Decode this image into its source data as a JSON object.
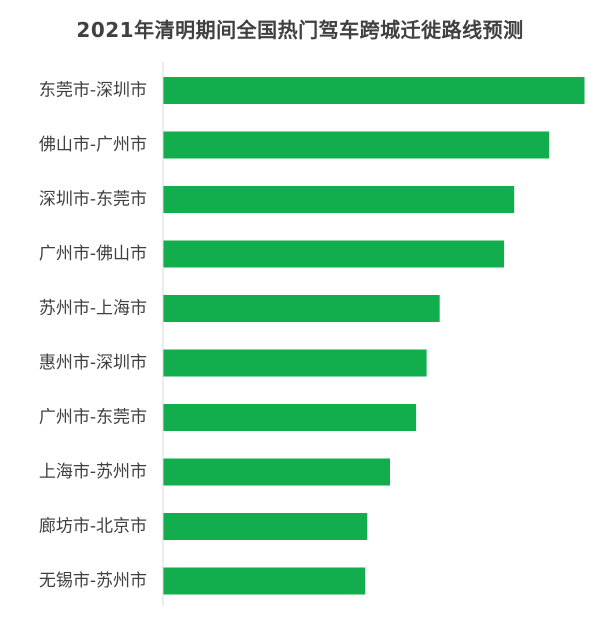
{
  "chart_data": {
    "type": "bar",
    "orientation": "horizontal",
    "title": "2021年清明期间全国热门驾车跨城迁徙路线预测",
    "categories": [
      "东莞市-深圳市",
      "佛山市-广州市",
      "深圳市-东莞市",
      "广州市-佛山市",
      "苏州市-上海市",
      "惠州市-深圳市",
      "广州市-东莞市",
      "上海市-苏州市",
      "廊坊市-北京市",
      "无锡市-苏州市"
    ],
    "values": [
      100,
      91.6,
      83.3,
      80.9,
      65.6,
      62.5,
      60.0,
      53.8,
      48.4,
      47.9
    ],
    "xlim": [
      0,
      100
    ],
    "grid": false,
    "legend": "none",
    "bar_color": "#12ad4c",
    "axis_color": "#d9d9d9",
    "label_color": "#404040"
  }
}
